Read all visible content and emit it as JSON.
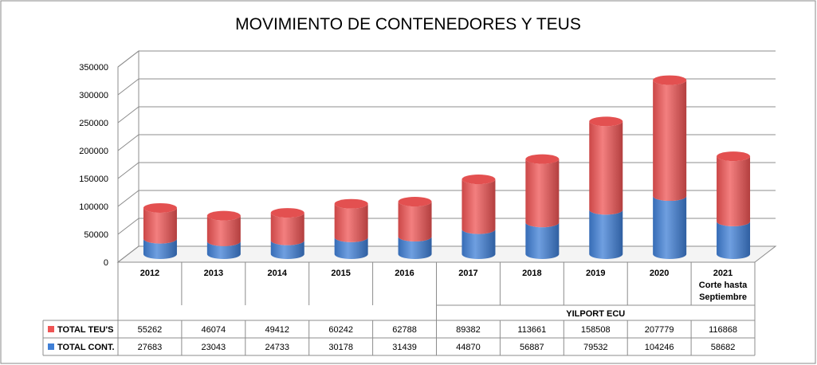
{
  "chart_data": {
    "type": "bar",
    "stacked": true,
    "title": "MOVIMIENTO DE CONTENEDORES Y TEUS",
    "ylim": [
      0,
      350000
    ],
    "yticks": [
      0,
      50000,
      100000,
      150000,
      200000,
      250000,
      300000,
      350000
    ],
    "categories": [
      "2012",
      "2013",
      "2014",
      "2015",
      "2016",
      "2017",
      "2018",
      "2019",
      "2020",
      "2021"
    ],
    "category_sublabel": {
      "category": "2021",
      "lines": [
        "Corte hasta",
        "Septiembre"
      ]
    },
    "group_label": {
      "text": "YILPORT ECU",
      "from": "2017",
      "to": "2021"
    },
    "grid": true,
    "legend_placement": "data-table",
    "series": [
      {
        "name": "TOTAL TEU'S",
        "color": "#ef5454",
        "values": [
          55262,
          46074,
          49412,
          60242,
          62788,
          89382,
          113661,
          158508,
          207779,
          116868
        ]
      },
      {
        "name": "TOTAL CONT.",
        "color": "#3f7fd6",
        "values": [
          27683,
          23043,
          24733,
          30178,
          31439,
          44870,
          56887,
          79532,
          104246,
          58682
        ]
      }
    ]
  }
}
